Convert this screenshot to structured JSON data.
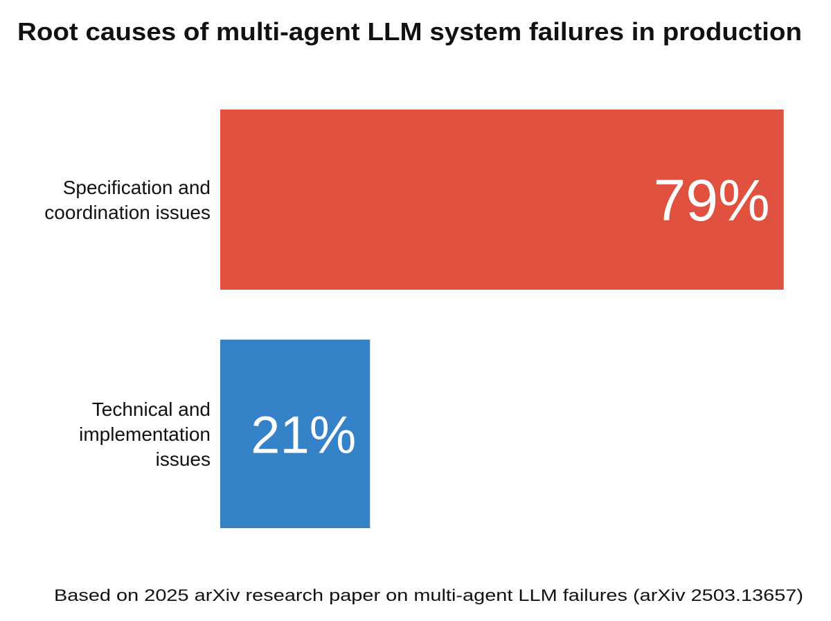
{
  "chart_data": {
    "type": "bar",
    "orientation": "horizontal",
    "title": "Root causes of multi-agent LLM system failures in production",
    "categories": [
      [
        "Specification and",
        "coordination issues"
      ],
      [
        "Technical and",
        "implementation",
        "issues"
      ]
    ],
    "values": [
      79,
      21
    ],
    "value_labels": [
      "79%",
      "21%"
    ],
    "colors": [
      "#E0523F",
      "#3582C8"
    ],
    "xlabel": "",
    "ylabel": "",
    "grid": false,
    "axes_visible": false,
    "footnote": "Based on 2025 arXiv research paper on multi-agent LLM failures (arXiv 2503.13657)"
  }
}
